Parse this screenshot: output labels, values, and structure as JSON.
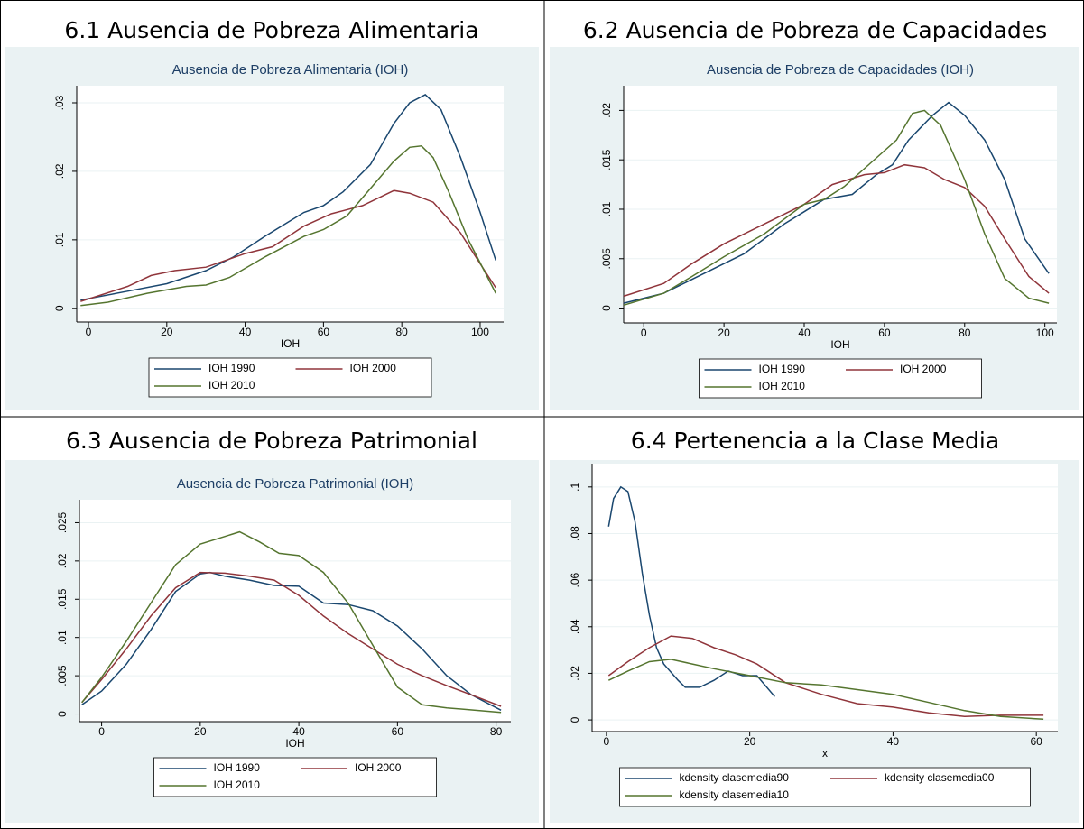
{
  "chart_data": [
    {
      "type": "line",
      "title": "6.1 Ausencia de Pobreza Alimentaria",
      "subtitle": "Ausencia de Pobreza Alimentaria (IOH)",
      "x_label": "IOH",
      "xlim": [
        -3,
        106
      ],
      "ylim": [
        -0.002,
        0.0325
      ],
      "xticks": [
        0,
        20,
        40,
        60,
        80,
        100
      ],
      "yticks": [
        0,
        {
          "value": 0.01,
          "label": ".01"
        },
        {
          "value": 0.02,
          "label": ".02"
        },
        {
          "value": 0.03,
          "label": ".03"
        }
      ],
      "grid": true,
      "legend": "bottom",
      "series": [
        {
          "name": "IOH 1990",
          "color": "#1a476f",
          "x": [
            -2,
            10,
            20,
            30,
            37,
            45,
            55,
            60,
            65,
            72,
            78,
            82,
            86,
            90,
            95,
            100,
            104
          ],
          "values": [
            0.0012,
            0.0025,
            0.0036,
            0.0055,
            0.0075,
            0.0105,
            0.014,
            0.015,
            0.017,
            0.021,
            0.027,
            0.03,
            0.0312,
            0.029,
            0.022,
            0.014,
            0.007
          ]
        },
        {
          "name": "IOH 2000",
          "color": "#90353b",
          "x": [
            -2,
            10,
            16,
            22,
            30,
            40,
            47,
            55,
            62,
            70,
            78,
            82,
            88,
            95,
            100,
            104
          ],
          "values": [
            0.001,
            0.0032,
            0.0048,
            0.0055,
            0.006,
            0.008,
            0.009,
            0.012,
            0.0138,
            0.015,
            0.0172,
            0.0168,
            0.0155,
            0.011,
            0.0065,
            0.003
          ]
        },
        {
          "name": "IOH 2010",
          "color": "#55752f",
          "x": [
            -2,
            5,
            15,
            25,
            30,
            36,
            45,
            55,
            60,
            66,
            72,
            78,
            82,
            85,
            88,
            92,
            97,
            104
          ],
          "values": [
            0.0004,
            0.0009,
            0.0022,
            0.0032,
            0.0034,
            0.0045,
            0.0075,
            0.0105,
            0.0115,
            0.0135,
            0.0175,
            0.0215,
            0.0235,
            0.0237,
            0.022,
            0.017,
            0.01,
            0.0022
          ]
        }
      ]
    },
    {
      "type": "line",
      "title": "6.2 Ausencia de Pobreza de Capacidades",
      "subtitle": "Ausencia de Pobreza de Capacidades (IOH)",
      "x_label": "IOH",
      "xlim": [
        -5,
        103
      ],
      "ylim": [
        -0.0015,
        0.0225
      ],
      "xticks": [
        0,
        20,
        40,
        60,
        80,
        100
      ],
      "yticks": [
        0,
        {
          "value": 0.005,
          "label": ".005"
        },
        {
          "value": 0.01,
          "label": ".01"
        },
        {
          "value": 0.015,
          "label": ".015"
        },
        {
          "value": 0.02,
          "label": ".02"
        }
      ],
      "grid": true,
      "legend": "bottom",
      "series": [
        {
          "name": "IOH 1990",
          "color": "#1a476f",
          "x": [
            -5,
            5,
            15,
            25,
            35,
            45,
            52,
            58,
            62,
            66,
            72,
            76,
            80,
            85,
            90,
            95,
            101
          ],
          "values": [
            0.0005,
            0.0015,
            0.0035,
            0.0055,
            0.0085,
            0.011,
            0.0115,
            0.0135,
            0.0145,
            0.017,
            0.0195,
            0.0208,
            0.0195,
            0.017,
            0.013,
            0.007,
            0.0035
          ]
        },
        {
          "name": "IOH 2000",
          "color": "#90353b",
          "x": [
            -5,
            5,
            12,
            20,
            30,
            40,
            47,
            55,
            60,
            65,
            70,
            75,
            80,
            85,
            90,
            96,
            101
          ],
          "values": [
            0.0012,
            0.0025,
            0.0045,
            0.0065,
            0.0085,
            0.0105,
            0.0125,
            0.0135,
            0.0137,
            0.0145,
            0.0142,
            0.013,
            0.0122,
            0.0103,
            0.007,
            0.0032,
            0.0015
          ]
        },
        {
          "name": "IOH 2010",
          "color": "#55752f",
          "x": [
            -5,
            5,
            12,
            20,
            30,
            40,
            45,
            50,
            58,
            63,
            67,
            70,
            74,
            80,
            85,
            90,
            96,
            101
          ],
          "values": [
            0.0003,
            0.0015,
            0.0032,
            0.0052,
            0.0075,
            0.0105,
            0.011,
            0.0123,
            0.0152,
            0.017,
            0.0197,
            0.02,
            0.0185,
            0.013,
            0.0075,
            0.003,
            0.001,
            0.0005
          ]
        }
      ]
    },
    {
      "type": "line",
      "title": "6.3 Ausencia de Pobreza Patrimonial",
      "subtitle": "Ausencia de Pobreza Patrimonial (IOH)",
      "x_label": "IOH",
      "xlim": [
        -4.5,
        83
      ],
      "ylim": [
        -0.001,
        0.028
      ],
      "xticks": [
        0,
        20,
        40,
        60,
        80
      ],
      "yticks": [
        0,
        {
          "value": 0.005,
          "label": ".005"
        },
        {
          "value": 0.01,
          "label": ".01"
        },
        {
          "value": 0.015,
          "label": ".015"
        },
        {
          "value": 0.02,
          "label": ".02"
        },
        {
          "value": 0.025,
          "label": ".025"
        }
      ],
      "grid": true,
      "legend": "bottom",
      "series": [
        {
          "name": "IOH 1990",
          "color": "#1a476f",
          "x": [
            -4,
            0,
            5,
            10,
            15,
            20,
            22,
            25,
            30,
            35,
            40,
            45,
            50,
            55,
            60,
            65,
            70,
            75,
            81
          ],
          "values": [
            0.0012,
            0.003,
            0.0065,
            0.011,
            0.016,
            0.0183,
            0.0185,
            0.018,
            0.0175,
            0.0168,
            0.0167,
            0.0145,
            0.0143,
            0.0135,
            0.0115,
            0.0085,
            0.005,
            0.0025,
            0.0005
          ]
        },
        {
          "name": "IOH 2000",
          "color": "#90353b",
          "x": [
            -4,
            0,
            5,
            10,
            15,
            20,
            25,
            30,
            35,
            40,
            45,
            50,
            55,
            60,
            65,
            70,
            75,
            81
          ],
          "values": [
            0.0015,
            0.0045,
            0.0085,
            0.0128,
            0.0165,
            0.0185,
            0.0184,
            0.018,
            0.0175,
            0.0155,
            0.0128,
            0.0105,
            0.0085,
            0.0065,
            0.005,
            0.0037,
            0.0025,
            0.001
          ]
        },
        {
          "name": "IOH 2010",
          "color": "#55752f",
          "x": [
            -4,
            0,
            5,
            10,
            15,
            20,
            25,
            28,
            32,
            36,
            40,
            45,
            50,
            55,
            60,
            65,
            70,
            81
          ],
          "values": [
            0.0015,
            0.0048,
            0.0095,
            0.0145,
            0.0195,
            0.0222,
            0.0232,
            0.0238,
            0.0225,
            0.021,
            0.0207,
            0.0185,
            0.0145,
            0.009,
            0.0035,
            0.0012,
            0.0008,
            0.0002
          ]
        }
      ]
    },
    {
      "type": "line",
      "title": "6.4 Pertenencia a la Clase Media",
      "x_label": "x",
      "xlim": [
        -2,
        63
      ],
      "ylim": [
        -0.005,
        0.11
      ],
      "xticks": [
        0,
        20,
        40,
        60
      ],
      "yticks": [
        0,
        {
          "value": 0.02,
          "label": ".02"
        },
        {
          "value": 0.04,
          "label": ".04"
        },
        {
          "value": 0.06,
          "label": ".06"
        },
        {
          "value": 0.08,
          "label": ".08"
        },
        {
          "value": 0.1,
          "label": ".1"
        }
      ],
      "grid": true,
      "legend": "bottom",
      "series": [
        {
          "name": "kdensity clasemedia90",
          "color": "#1a476f",
          "x": [
            0.3,
            1,
            2,
            3,
            4,
            5,
            6,
            7,
            8,
            10,
            11,
            13,
            15,
            17,
            19,
            21,
            23.5
          ],
          "values": [
            0.083,
            0.095,
            0.1,
            0.098,
            0.085,
            0.063,
            0.045,
            0.031,
            0.024,
            0.017,
            0.014,
            0.014,
            0.017,
            0.021,
            0.019,
            0.019,
            0.01
          ]
        },
        {
          "name": "kdensity clasemedia00",
          "color": "#90353b",
          "x": [
            0.3,
            3,
            6,
            9,
            12,
            15,
            18,
            21,
            25,
            30,
            35,
            40,
            45,
            50,
            55,
            61
          ],
          "values": [
            0.019,
            0.025,
            0.031,
            0.036,
            0.035,
            0.031,
            0.028,
            0.024,
            0.016,
            0.011,
            0.007,
            0.0055,
            0.003,
            0.0015,
            0.002,
            0.002
          ]
        },
        {
          "name": "kdensity clasemedia10",
          "color": "#55752f",
          "x": [
            0.3,
            3,
            6,
            9,
            12,
            15,
            20,
            25,
            30,
            35,
            40,
            45,
            50,
            55,
            61
          ],
          "values": [
            0.017,
            0.021,
            0.025,
            0.026,
            0.024,
            0.022,
            0.019,
            0.016,
            0.015,
            0.013,
            0.011,
            0.0075,
            0.004,
            0.0015,
            0.0003
          ]
        }
      ]
    }
  ]
}
